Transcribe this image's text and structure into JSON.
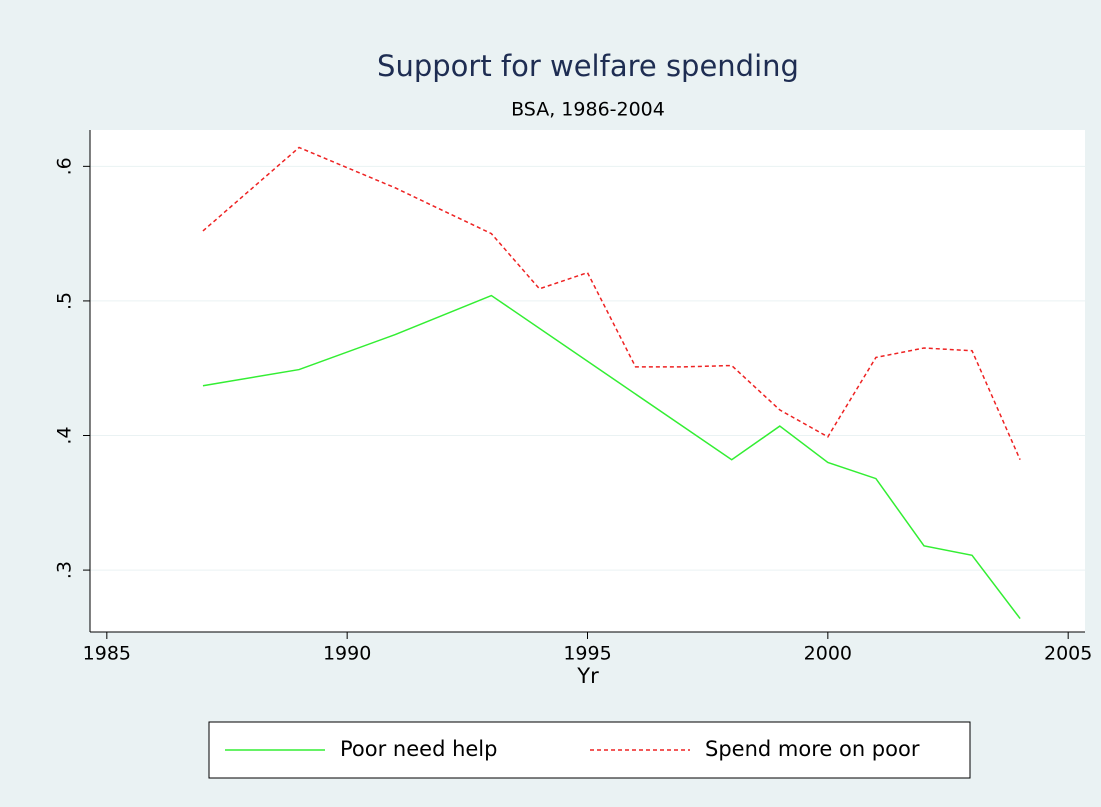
{
  "chart_data": {
    "type": "line",
    "title": "Support for welfare spending",
    "subtitle": "BSA, 1986-2004",
    "x_label": "Yr",
    "series": [
      {
        "name": "Poor need help",
        "color": "#33ee33",
        "dash": "solid",
        "x": [
          1987,
          1989,
          1991,
          1993,
          1998,
          1999,
          2000,
          2001,
          2002,
          2003,
          2004
        ],
        "values": [
          0.437,
          0.449,
          0.475,
          0.504,
          0.382,
          0.407,
          0.38,
          0.368,
          0.318,
          0.311,
          0.264
        ]
      },
      {
        "name": "Spend more on poor",
        "color": "#ee2222",
        "dash": "dashed",
        "x": [
          1987,
          1989,
          1991,
          1993,
          1994,
          1995,
          1996,
          1997,
          1998,
          1999,
          2000,
          2001,
          2002,
          2003,
          2004
        ],
        "values": [
          0.552,
          0.614,
          0.584,
          0.55,
          0.509,
          0.521,
          0.451,
          0.451,
          0.452,
          0.419,
          0.399,
          0.458,
          0.465,
          0.463,
          0.382
        ]
      }
    ],
    "xlim": [
      1984.65,
      2005.35
    ],
    "xticks": [
      1985,
      1990,
      1995,
      2000,
      2005
    ],
    "ylim": [
      0.254,
      0.627
    ],
    "yticks": [
      {
        "value": 0.3,
        "label": ".3"
      },
      {
        "value": 0.4,
        "label": ".4"
      },
      {
        "value": 0.5,
        "label": ".5"
      },
      {
        "value": 0.6,
        "label": ".6"
      }
    ],
    "grid": true,
    "legend": "bottom"
  }
}
